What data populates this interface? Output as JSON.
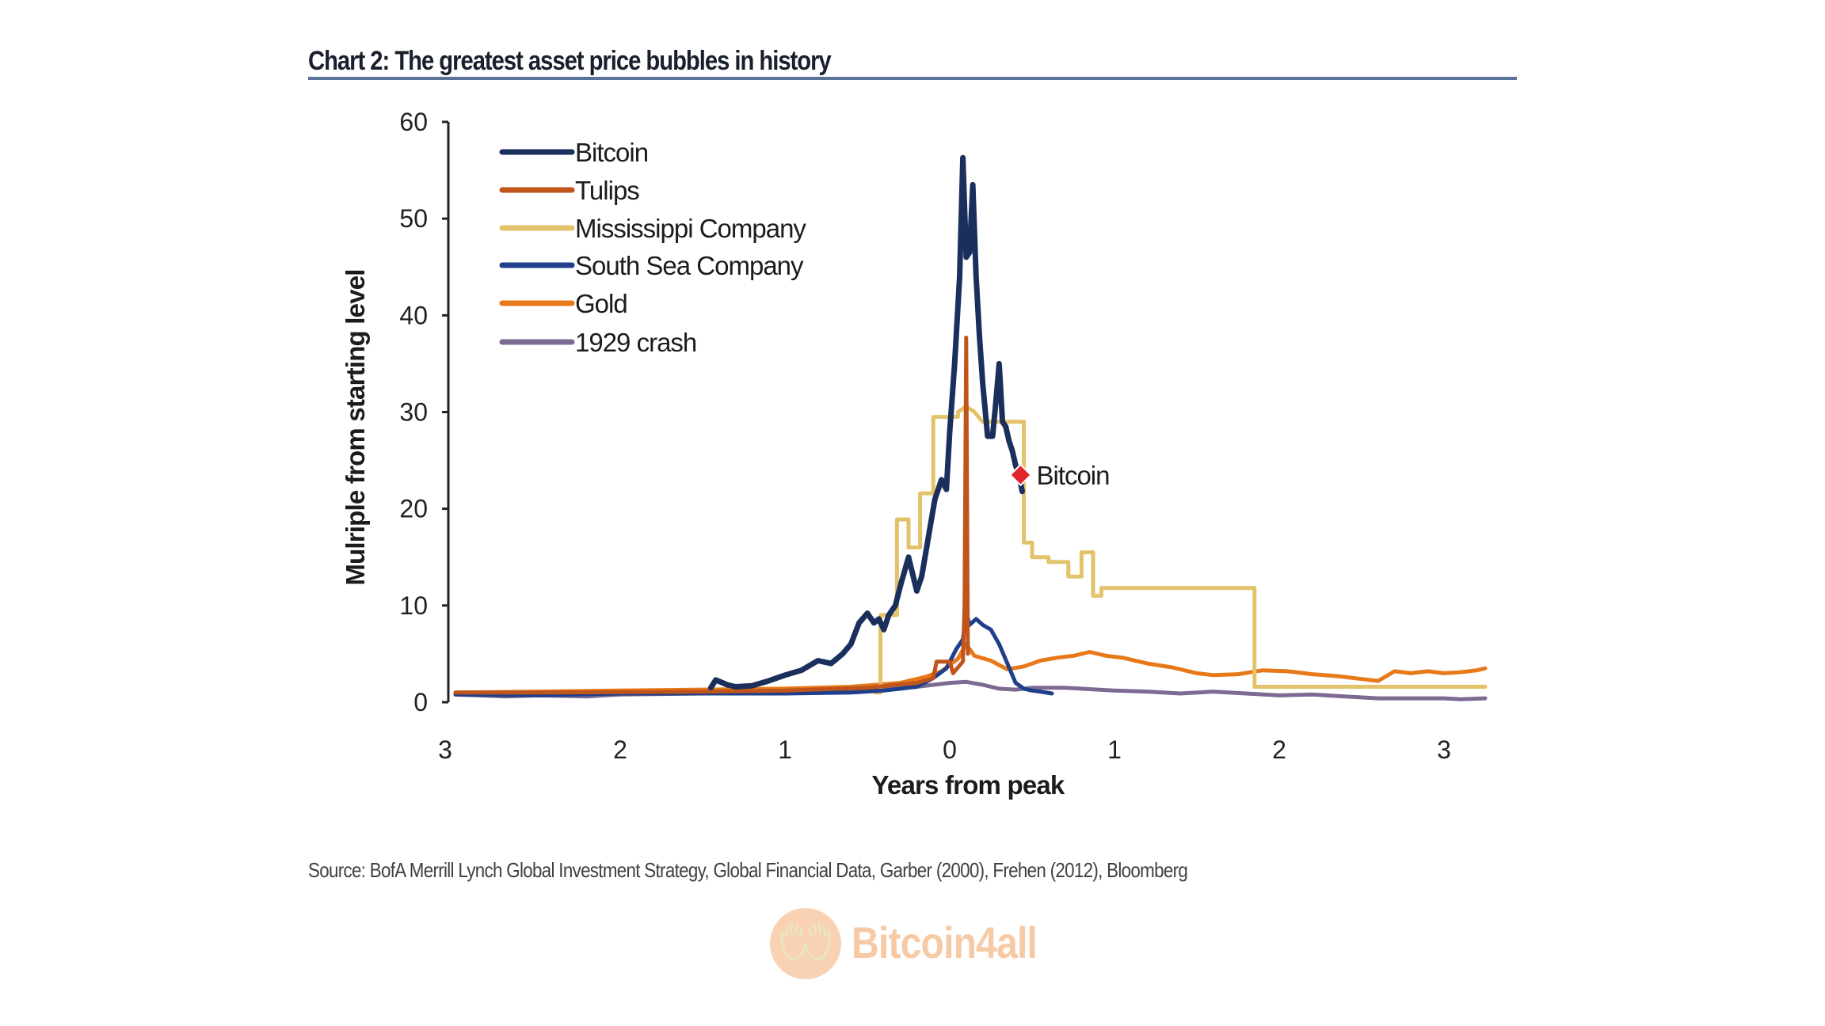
{
  "header": {
    "title": "Chart 2: The greatest asset price bubbles in history"
  },
  "footer": {
    "source": "Source:  BofA Merrill Lynch Global Investment Strategy, Global Financial Data, Garber (2000), Frehen (2012),  Bloomberg",
    "watermark": "Bitcoin4all",
    "watermark_icon": "hands-icon"
  },
  "chart_data": {
    "type": "line",
    "title": "Chart 2: The greatest asset price bubbles in history",
    "xlabel": "Years from peak",
    "ylabel": "Mulriple from starting level",
    "xlim": [
      -3,
      3.25
    ],
    "ylim": [
      0,
      60
    ],
    "x_ticks": [
      -3,
      -2,
      -1,
      0,
      1,
      2,
      3
    ],
    "x_tick_labels": [
      "3",
      "2",
      "1",
      "0",
      "1",
      "2",
      "3"
    ],
    "y_ticks": [
      0,
      10,
      20,
      30,
      40,
      50,
      60
    ],
    "y_tick_labels": [
      "0",
      "10",
      "20",
      "30",
      "40",
      "50",
      "60"
    ],
    "grid": false,
    "legend_position": "top-left",
    "annotation": {
      "label": "Bitcoin",
      "x": 0.43,
      "y": 23.5,
      "marker": "diamond",
      "color": "#e0242a"
    },
    "series": [
      {
        "name": "Bitcoin",
        "color": "#1b2f5c",
        "x": [
          -1.45,
          -1.42,
          -1.35,
          -1.3,
          -1.2,
          -1.1,
          -1.0,
          -0.9,
          -0.8,
          -0.72,
          -0.65,
          -0.6,
          -0.55,
          -0.5,
          -0.46,
          -0.43,
          -0.4,
          -0.37,
          -0.33,
          -0.3,
          -0.25,
          -0.2,
          -0.17,
          -0.14,
          -0.12,
          -0.09,
          -0.05,
          -0.02,
          0.0,
          0.03,
          0.06,
          0.08,
          0.1,
          0.12,
          0.14,
          0.16,
          0.18,
          0.2,
          0.23,
          0.26,
          0.28,
          0.3,
          0.32,
          0.34,
          0.36,
          0.38,
          0.4,
          0.42,
          0.44
        ],
        "y": [
          1.5,
          2.3,
          1.8,
          1.6,
          1.7,
          2.2,
          2.8,
          3.3,
          4.3,
          4.0,
          5.0,
          6.0,
          8.2,
          9.2,
          8.2,
          8.6,
          7.5,
          9.0,
          10.0,
          12.0,
          15.0,
          11.5,
          13.0,
          16.0,
          18.0,
          21.0,
          23.0,
          22.0,
          28.0,
          35.0,
          44.0,
          56.3,
          46.0,
          46.5,
          53.5,
          44.0,
          38.0,
          33.0,
          27.5,
          27.5,
          31.0,
          35.0,
          29.0,
          28.5,
          27.0,
          26.0,
          24.5,
          23.5,
          21.8
        ]
      },
      {
        "name": "Tulips",
        "color": "#c0551c",
        "x": [
          -3.0,
          -2.5,
          -2.0,
          -1.5,
          -1.0,
          -0.5,
          -0.2,
          -0.1,
          -0.08,
          0.0,
          0.02,
          0.08,
          0.09,
          0.1,
          0.11
        ],
        "y": [
          1.0,
          1.0,
          1.05,
          1.1,
          1.2,
          1.5,
          2.0,
          2.5,
          4.2,
          4.2,
          3.0,
          4.2,
          10.0,
          37.7,
          5.0
        ]
      },
      {
        "name": "Mississippi Company",
        "color": "#e2c36a",
        "x": [
          -0.45,
          -0.42,
          -0.42,
          -0.32,
          -0.32,
          -0.25,
          -0.25,
          -0.18,
          -0.18,
          -0.1,
          -0.1,
          0.05,
          0.05,
          0.1,
          0.15,
          0.2,
          0.2,
          0.45,
          0.45,
          0.5,
          0.5,
          0.6,
          0.6,
          0.72,
          0.72,
          0.8,
          0.8,
          0.87,
          0.87,
          0.92,
          0.92,
          1.0,
          1.0,
          1.8,
          1.8,
          1.85,
          1.85,
          3.25
        ],
        "y": [
          1.0,
          1.0,
          9.0,
          9.0,
          18.9,
          18.9,
          16.0,
          16.0,
          21.6,
          21.6,
          29.5,
          29.5,
          30.0,
          30.6,
          30.0,
          29.0,
          29.0,
          29.0,
          16.5,
          16.5,
          15.0,
          15.0,
          14.5,
          14.5,
          13.0,
          13.0,
          15.5,
          15.5,
          11.0,
          11.0,
          11.8,
          11.8,
          11.8,
          11.8,
          11.8,
          11.8,
          1.6,
          1.6
        ]
      },
      {
        "name": "South Sea Company",
        "color": "#1f3f8a",
        "x": [
          -3.0,
          -2.5,
          -2.0,
          -1.5,
          -1.0,
          -0.6,
          -0.4,
          -0.2,
          -0.1,
          -0.02,
          0.04,
          0.08,
          0.1,
          0.12,
          0.16,
          0.2,
          0.25,
          0.3,
          0.35,
          0.4,
          0.45,
          0.5,
          0.55,
          0.62
        ],
        "y": [
          0.8,
          0.7,
          0.9,
          0.9,
          0.9,
          1.0,
          1.2,
          1.6,
          2.5,
          3.5,
          5.5,
          6.5,
          9.3,
          8.0,
          8.6,
          8.0,
          7.5,
          6.0,
          4.0,
          2.0,
          1.4,
          1.2,
          1.1,
          0.9
        ]
      },
      {
        "name": "Gold",
        "color": "#e8791a",
        "x": [
          -3.0,
          -2.5,
          -2.0,
          -1.5,
          -1.0,
          -0.6,
          -0.3,
          -0.15,
          -0.05,
          0.05,
          0.1,
          0.15,
          0.25,
          0.35,
          0.45,
          0.55,
          0.65,
          0.75,
          0.85,
          0.95,
          1.05,
          1.2,
          1.35,
          1.5,
          1.6,
          1.75,
          1.9,
          2.05,
          2.2,
          2.35,
          2.5,
          2.6,
          2.7,
          2.8,
          2.9,
          3.0,
          3.1,
          3.2,
          3.25
        ],
        "y": [
          1.0,
          1.1,
          1.2,
          1.3,
          1.4,
          1.6,
          2.0,
          2.6,
          3.2,
          4.5,
          6.0,
          4.8,
          4.3,
          3.4,
          3.7,
          4.3,
          4.6,
          4.8,
          5.2,
          4.8,
          4.6,
          4.0,
          3.6,
          3.0,
          2.8,
          2.9,
          3.3,
          3.2,
          2.9,
          2.7,
          2.4,
          2.2,
          3.2,
          3.0,
          3.2,
          3.0,
          3.1,
          3.3,
          3.5
        ]
      },
      {
        "name": "1929 crash",
        "color": "#7d6a92",
        "x": [
          -3.0,
          -2.7,
          -2.5,
          -2.2,
          -2.0,
          -1.5,
          -1.0,
          -0.5,
          -0.2,
          0.0,
          0.1,
          0.2,
          0.3,
          0.4,
          0.5,
          0.7,
          0.9,
          1.0,
          1.2,
          1.4,
          1.6,
          1.8,
          2.0,
          2.2,
          2.4,
          2.6,
          2.8,
          3.0,
          3.1,
          3.25
        ],
        "y": [
          0.8,
          0.6,
          0.7,
          0.6,
          0.8,
          0.9,
          1.0,
          1.2,
          1.6,
          2.0,
          2.1,
          1.8,
          1.4,
          1.3,
          1.5,
          1.5,
          1.3,
          1.2,
          1.1,
          0.9,
          1.1,
          0.9,
          0.7,
          0.8,
          0.6,
          0.4,
          0.4,
          0.4,
          0.3,
          0.4
        ]
      }
    ]
  }
}
